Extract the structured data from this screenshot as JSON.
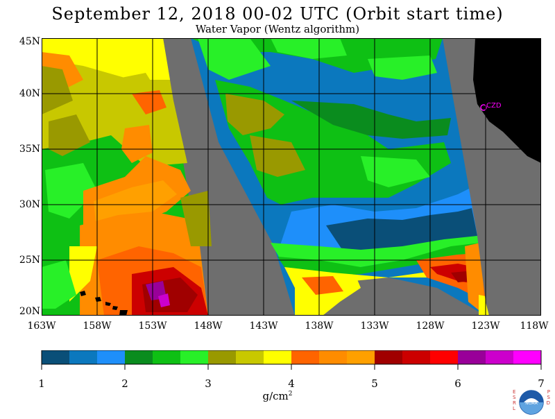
{
  "header": {
    "title": "September 12, 2018  00-02 UTC  (Orbit start time)",
    "subtitle": "Water Vapor (Wentz algorithm)"
  },
  "map": {
    "lat_labels": [
      "45N",
      "40N",
      "35N",
      "30N",
      "25N",
      "20N"
    ],
    "lon_labels": [
      "163W",
      "158W",
      "153W",
      "148W",
      "143W",
      "138W",
      "133W",
      "128W",
      "123W",
      "118W"
    ],
    "station_label": "CZD",
    "colors": {
      "swath_gap": "#6e6e6e",
      "land": "#000000",
      "station": "#ff00ff"
    }
  },
  "colorbar": {
    "tick_labels": [
      "1",
      "2",
      "3",
      "4",
      "5",
      "6",
      "7"
    ],
    "unit": "g/cm",
    "unit_exp": "2",
    "colors": [
      "#0a4f78",
      "#0b78be",
      "#1e8ffa",
      "#0a8c1e",
      "#0ec014",
      "#28f028",
      "#999900",
      "#c8c800",
      "#ffff00",
      "#ff6400",
      "#ff8c00",
      "#ffa000",
      "#a00000",
      "#cc0000",
      "#ff0000",
      "#990099",
      "#cc00cc",
      "#ff00ff"
    ]
  },
  "logo": {
    "left_letters": "ESRL",
    "right_letters": "PSD",
    "center": "NOAA"
  }
}
